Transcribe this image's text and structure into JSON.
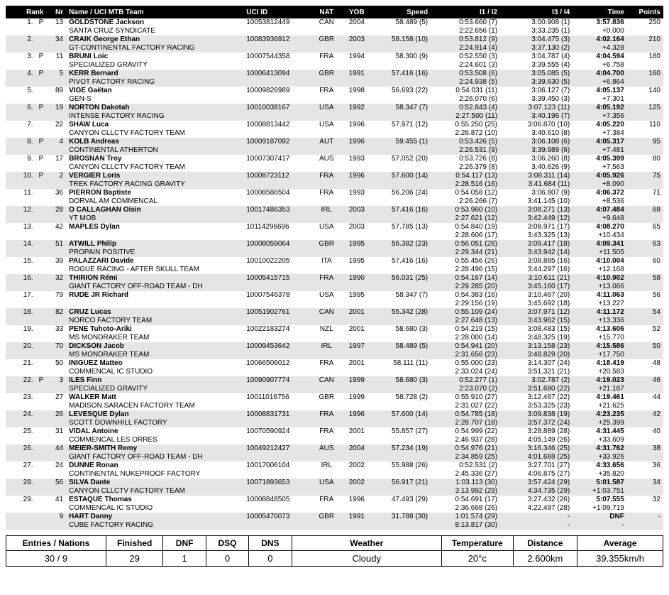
{
  "headers": {
    "rank": "Rank",
    "nr": "Nr",
    "name": "Name / UCI MTB Team",
    "uci": "UCI ID",
    "nat": "NAT",
    "yob": "YOB",
    "speed": "Speed",
    "i12": "I1 / I2",
    "i34": "I3 / I4",
    "time": "Time",
    "points": "Points"
  },
  "col_widths": {
    "rank": 40,
    "p": 14,
    "nr": 26,
    "name": 235,
    "uci": 90,
    "nat": 40,
    "yob": 40,
    "speed": 78,
    "i12": 92,
    "i34": 96,
    "time": 72,
    "points": 48
  },
  "row_colors": {
    "even": "#ffffff",
    "odd": "#e5e5e5"
  },
  "font_size": 10,
  "rows": [
    {
      "rank": "1.",
      "p": "P",
      "nr": "13",
      "rider": "GOLDSTONE Jackson",
      "team": "SANTA CRUZ SYNDICATE",
      "uci": "10053812449",
      "nat": "CAN",
      "yob": "2004",
      "speed": "58.489 (5)",
      "i1": "0:53.660 (7)",
      "i2": "2:22.656 (1)",
      "i3": "3:00.908 (1)",
      "i4": "3:33.235 (1)",
      "time": "3:57.836",
      "gap": "+0.000",
      "pts": "250"
    },
    {
      "rank": "2.",
      "p": "",
      "nr": "34",
      "rider": "CRAIK George Ethan",
      "team": "GT-CONTINENTAL FACTORY RACING",
      "uci": "10083936912",
      "nat": "GBR",
      "yob": "2003",
      "speed": "58.158 (10)",
      "i1": "0:53.812 (9)",
      "i2": "2:24.914 (4)",
      "i3": "3:04.475 (3)",
      "i4": "3:37.130 (2)",
      "time": "4:02.164",
      "gap": "+4.328",
      "pts": "210"
    },
    {
      "rank": "3.",
      "p": "P",
      "nr": "11",
      "rider": "BRUNI Loic",
      "team": "SPECIALIZED GRAVITY",
      "uci": "10007544358",
      "nat": "FRA",
      "yob": "1994",
      "speed": "58.300 (9)",
      "i1": "0:52.550 (3)",
      "i2": "2:24.601 (3)",
      "i3": "3:04.787 (4)",
      "i4": "3:39.555 (4)",
      "time": "4:04.594",
      "gap": "+6.758",
      "pts": "180"
    },
    {
      "rank": "4.",
      "p": "P",
      "nr": "5",
      "rider": "KERR Bernard",
      "team": "PIVOT FACTORY RACING",
      "uci": "10006413094",
      "nat": "GBR",
      "yob": "1991",
      "speed": "57.416 (16)",
      "i1": "0:53.508 (6)",
      "i2": "2:24.938 (5)",
      "i3": "3:05.085 (5)",
      "i4": "3:39.630 (5)",
      "time": "4:04.700",
      "gap": "+6.864",
      "pts": "160"
    },
    {
      "rank": "5.",
      "p": "",
      "nr": "89",
      "rider": "VIGE Gaëtan",
      "team": "GEN-S",
      "uci": "10009826989",
      "nat": "FRA",
      "yob": "1998",
      "speed": "56.693 (22)",
      "i1": "0:54.031 (11)",
      "i2": "2:26.070 (6)",
      "i3": "3:06.127 (7)",
      "i4": "3:39.450 (3)",
      "time": "4:05.137",
      "gap": "+7.301",
      "pts": "140"
    },
    {
      "rank": "6.",
      "p": "P",
      "nr": "19",
      "rider": "NORTON Dakotah",
      "team": "INTENSE FACTORY RACING",
      "uci": "10010038167",
      "nat": "USA",
      "yob": "1992",
      "speed": "58.347 (7)",
      "i1": "0:52.843 (4)",
      "i2": "2:27.500 (11)",
      "i3": "3:07.123 (11)",
      "i4": "3:40.196 (7)",
      "time": "4:05.192",
      "gap": "+7.356",
      "pts": "125"
    },
    {
      "rank": "7.",
      "p": "",
      "nr": "22",
      "rider": "SHAW Luca",
      "team": "CANYON CLLCTV FACTORY TEAM",
      "uci": "10008813442",
      "nat": "USA",
      "yob": "1996",
      "speed": "57.971 (12)",
      "i1": "0:55.250 (25)",
      "i2": "2:26.872 (10)",
      "i3": "3:06.870 (10)",
      "i4": "3:40.610 (8)",
      "time": "4:05.220",
      "gap": "+7.384",
      "pts": "110"
    },
    {
      "rank": "8.",
      "p": "P",
      "nr": "4",
      "rider": "KOLB Andreas",
      "team": "CONTINENTAL ATHERTON",
      "uci": "10009187092",
      "nat": "AUT",
      "yob": "1996",
      "speed": "59.455 (1)",
      "i1": "0:53.426 (5)",
      "i2": "2:26.531 (9)",
      "i3": "3:06.108 (6)",
      "i4": "3:39.989 (6)",
      "time": "4:05.317",
      "gap": "+7.481",
      "pts": "95"
    },
    {
      "rank": "9.",
      "p": "P",
      "nr": "17",
      "rider": "BROSNAN Troy",
      "team": "CANYON CLLCTV FACTORY TEAM",
      "uci": "10007307417",
      "nat": "AUS",
      "yob": "1993",
      "speed": "57.052 (20)",
      "i1": "0:53.726 (8)",
      "i2": "2:26.379 (8)",
      "i3": "3:06.260 (8)",
      "i4": "3:40.626 (9)",
      "time": "4:05.399",
      "gap": "+7.563",
      "pts": "80"
    },
    {
      "rank": "10.",
      "p": "P",
      "nr": "2",
      "rider": "VERGIER Loris",
      "team": "TREK FACTORY RACING GRAVITY",
      "uci": "10008723112",
      "nat": "FRA",
      "yob": "1996",
      "speed": "57.600 (14)",
      "i1": "0:54.117 (13)",
      "i2": "2:28.516 (16)",
      "i3": "3:08.311 (14)",
      "i4": "3:41.684 (11)",
      "time": "4:05.926",
      "gap": "+8.090",
      "pts": "75"
    },
    {
      "rank": "11.",
      "p": "",
      "nr": "36",
      "rider": "PIERRON Baptiste",
      "team": "DORVAL AM COMMENCAL",
      "uci": "10008586504",
      "nat": "FRA",
      "yob": "1993",
      "speed": "56.206 (24)",
      "i1": "0:54.058 (12)",
      "i2": "2:26.266 (7)",
      "i3": "3:06.807 (9)",
      "i4": "3:41.145 (10)",
      "time": "4:06.372",
      "gap": "+8.536",
      "pts": "71"
    },
    {
      "rank": "12.",
      "p": "",
      "nr": "28",
      "rider": "O CALLAGHAN Oisin",
      "team": "YT MOB",
      "uci": "10017486353",
      "nat": "IRL",
      "yob": "2003",
      "speed": "57.416 (16)",
      "i1": "0:53.960 (10)",
      "i2": "2:27.621 (12)",
      "i3": "3:08.271 (13)",
      "i4": "3:42.449 (12)",
      "time": "4:07.484",
      "gap": "+9.648",
      "pts": "68"
    },
    {
      "rank": "13.",
      "p": "",
      "nr": "42",
      "rider": "MAPLES Dylan",
      "team": "",
      "uci": "10114296696",
      "nat": "USA",
      "yob": "2003",
      "speed": "57.785 (13)",
      "i1": "0:54.840 (19)",
      "i2": "2:28.606 (17)",
      "i3": "3:08.971 (17)",
      "i4": "3:43.325 (13)",
      "time": "4:08.270",
      "gap": "+10.434",
      "pts": "65"
    },
    {
      "rank": "14.",
      "p": "",
      "nr": "51",
      "rider": "ATWILL Philip",
      "team": "PROPAIN POSITIVE",
      "uci": "10008059064",
      "nat": "GBR",
      "yob": "1995",
      "speed": "56.382 (23)",
      "i1": "0:56.051 (28)",
      "i2": "2:29.344 (21)",
      "i3": "3:09.417 (18)",
      "i4": "3:43.942 (14)",
      "time": "4:09.341",
      "gap": "+11.505",
      "pts": "63"
    },
    {
      "rank": "15.",
      "p": "",
      "nr": "39",
      "rider": "PALAZZARI Davide",
      "team": "ROGUE RACING - AFTER SKULL TEAM",
      "uci": "10010022205",
      "nat": "ITA",
      "yob": "1995",
      "speed": "57.416 (16)",
      "i1": "0:55.456 (26)",
      "i2": "2:28.496 (15)",
      "i3": "3:08.885 (16)",
      "i4": "3:44.297 (16)",
      "time": "4:10.004",
      "gap": "+12.168",
      "pts": "60"
    },
    {
      "rank": "16.",
      "p": "",
      "nr": "32",
      "rider": "THIRION Rémi",
      "team": "GIANT FACTORY OFF-ROAD TEAM - DH",
      "uci": "10005415715",
      "nat": "FRA",
      "yob": "1990",
      "speed": "56.031 (25)",
      "i1": "0:54.167 (14)",
      "i2": "2:29.285 (20)",
      "i3": "3:10.611 (21)",
      "i4": "3:45.160 (17)",
      "time": "4:10.902",
      "gap": "+13.066",
      "pts": "58"
    },
    {
      "rank": "17.",
      "p": "",
      "nr": "79",
      "rider": "RUDE JR Richard",
      "team": "",
      "uci": "10007546378",
      "nat": "USA",
      "yob": "1995",
      "speed": "58.347 (7)",
      "i1": "0:54.383 (16)",
      "i2": "2:29.156 (19)",
      "i3": "3:10.467 (20)",
      "i4": "3:45.692 (18)",
      "time": "4:11.063",
      "gap": "+13.227",
      "pts": "56"
    },
    {
      "rank": "18.",
      "p": "",
      "nr": "82",
      "rider": "CRUZ Lucas",
      "team": "NORCO FACTORY TEAM",
      "uci": "10051902761",
      "nat": "CAN",
      "yob": "2001",
      "speed": "55.342 (28)",
      "i1": "0:55.109 (24)",
      "i2": "2:27.648 (13)",
      "i3": "3:07.971 (12)",
      "i4": "3:43.962 (15)",
      "time": "4:11.172",
      "gap": "+13.336",
      "pts": "54"
    },
    {
      "rank": "19.",
      "p": "",
      "nr": "33",
      "rider": "PENE Tuhoto-Ariki",
      "team": "MS MONDRAKER TEAM",
      "uci": "10022183274",
      "nat": "NZL",
      "yob": "2001",
      "speed": "58.680 (3)",
      "i1": "0:54.219 (15)",
      "i2": "2:28.000 (14)",
      "i3": "3:08.483 (15)",
      "i4": "3:48.325 (19)",
      "time": "4:13.606",
      "gap": "+15.770",
      "pts": "52"
    },
    {
      "rank": "20.",
      "p": "",
      "nr": "70",
      "rider": "DICKSON Jacob",
      "team": "MS MONDRAKER TEAM",
      "uci": "10009453642",
      "nat": "IRL",
      "yob": "1997",
      "speed": "58.489 (5)",
      "i1": "0:54.941 (20)",
      "i2": "2:31.656 (23)",
      "i3": "3:13.158 (23)",
      "i4": "3:48.829 (20)",
      "time": "4:15.586",
      "gap": "+17.750",
      "pts": "50"
    },
    {
      "rank": "21.",
      "p": "",
      "nr": "50",
      "rider": "INIGUEZ Matteo",
      "team": "COMMENCAL IC STUDIO",
      "uci": "10066506012",
      "nat": "FRA",
      "yob": "2001",
      "speed": "58.111 (11)",
      "i1": "0:55.000 (23)",
      "i2": "2:33.024 (24)",
      "i3": "3:14.307 (24)",
      "i4": "3:51.321 (21)",
      "time": "4:18.419",
      "gap": "+20.583",
      "pts": "48"
    },
    {
      "rank": "22.",
      "p": "P",
      "nr": "3",
      "rider": "ILES Finn",
      "team": "SPECIALIZED GRAVITY",
      "uci": "10090907774",
      "nat": "CAN",
      "yob": "1999",
      "speed": "58.680 (3)",
      "i1": "0:52.277 (1)",
      "i2": "2:23.070 (2)",
      "i3": "3:02.787 (2)",
      "i4": "3:51.680 (22)",
      "time": "4:19.023",
      "gap": "+21.187",
      "pts": "46"
    },
    {
      "rank": "23.",
      "p": "",
      "nr": "27",
      "rider": "WALKER Matt",
      "team": "MADISON SARACEN FACTORY TEAM",
      "uci": "10011016756",
      "nat": "GBR",
      "yob": "1999",
      "speed": "58.728 (2)",
      "i1": "0:55.910 (27)",
      "i2": "2:31.027 (22)",
      "i3": "3:12.467 (22)",
      "i4": "3:53.325 (23)",
      "time": "4:19.461",
      "gap": "+21.625",
      "pts": "44"
    },
    {
      "rank": "24.",
      "p": "",
      "nr": "26",
      "rider": "LEVESQUE Dylan",
      "team": "SCOTT DOWNHILL FACTORY",
      "uci": "10008831731",
      "nat": "FRA",
      "yob": "1996",
      "speed": "57.600 (14)",
      "i1": "0:54.785 (18)",
      "i2": "2:28.707 (18)",
      "i3": "3:09.838 (19)",
      "i4": "3:57.372 (24)",
      "time": "4:23.235",
      "gap": "+25.399",
      "pts": "42"
    },
    {
      "rank": "25.",
      "p": "",
      "nr": "31",
      "rider": "VIDAL Antoine",
      "team": "COMMENCAL LES ORRES",
      "uci": "10070590924",
      "nat": "FRA",
      "yob": "2001",
      "speed": "55.857 (27)",
      "i1": "0:54.999 (22)",
      "i2": "2:46.937 (28)",
      "i3": "3:28.889 (28)",
      "i4": "4:05.149 (26)",
      "time": "4:31.445",
      "gap": "+33.609",
      "pts": "40"
    },
    {
      "rank": "26.",
      "p": "",
      "nr": "44",
      "rider": "MEIER-SMITH Remy",
      "team": "GIANT FACTORY OFF-ROAD TEAM - DH",
      "uci": "10049212427",
      "nat": "AUS",
      "yob": "2004",
      "speed": "57.234 (19)",
      "i1": "0:54.976 (21)",
      "i2": "2:34.859 (25)",
      "i3": "3:16.346 (25)",
      "i4": "4:01.688 (25)",
      "time": "4:31.762",
      "gap": "+33.926",
      "pts": "38"
    },
    {
      "rank": "27.",
      "p": "",
      "nr": "24",
      "rider": "DUNNE Ronan",
      "team": "CONTINENTAL NUKEPROOF FACTORY",
      "uci": "10017006104",
      "nat": "IRL",
      "yob": "2002",
      "speed": "55.988 (26)",
      "i1": "0:52.531 (2)",
      "i2": "2:45.336 (27)",
      "i3": "3:27.701 (27)",
      "i4": "4:06.875 (27)",
      "time": "4:33.656",
      "gap": "+35.820",
      "pts": "36"
    },
    {
      "rank": "28.",
      "p": "",
      "nr": "56",
      "rider": "SILVA Dante",
      "team": "CANYON CLLCTV FACTORY TEAM",
      "uci": "10071893653",
      "nat": "USA",
      "yob": "2002",
      "speed": "56.917 (21)",
      "i1": "1:03.113 (30)",
      "i2": "3:13.992 (29)",
      "i3": "3:57.424 (29)",
      "i4": "4:34.735 (29)",
      "time": "5:01.587",
      "gap": "+1:03.751",
      "pts": "34"
    },
    {
      "rank": "29.",
      "p": "",
      "nr": "41",
      "rider": "ESTAQUE Thomas",
      "team": "COMMENCAL IC STUDIO",
      "uci": "10008848505",
      "nat": "FRA",
      "yob": "1996",
      "speed": "47.493 (29)",
      "i1": "0:54.691 (17)",
      "i2": "2:36.668 (26)",
      "i3": "3:27.432 (26)",
      "i4": "4:22.497 (28)",
      "time": "5:07.555",
      "gap": "+1:09.719",
      "pts": "32"
    },
    {
      "rank": "",
      "p": "",
      "nr": "9",
      "rider": "HART Danny",
      "team": "CUBE FACTORY RACING",
      "uci": "10005470073",
      "nat": "GBR",
      "yob": "1991",
      "speed": "31.788 (30)",
      "i1": "1:01.574 (29)",
      "i2": "8:13.817 (30)",
      "i3": "-",
      "i4": "-",
      "time": "DNF",
      "gap": "-",
      "pts": "-"
    }
  ],
  "summary": {
    "headers": {
      "entries": "Entries / Nations",
      "finished": "Finished",
      "dnf": "DNF",
      "dsq": "DSQ",
      "dns": "DNS",
      "weather": "Weather",
      "temperature": "Temperature",
      "distance": "Distance",
      "average": "Average"
    },
    "values": {
      "entries": "30 / 9",
      "finished": "29",
      "dnf": "1",
      "dsq": "0",
      "dns": "0",
      "weather": "Cloudy",
      "temperature": "20°c",
      "distance": "2.600km",
      "average": "39.355km/h"
    },
    "col_widths": {
      "entries": 140,
      "finished": 80,
      "dnf": 60,
      "dsq": 60,
      "dns": 60,
      "weather": 210,
      "temperature": 100,
      "distance": 90,
      "average": 120
    }
  }
}
